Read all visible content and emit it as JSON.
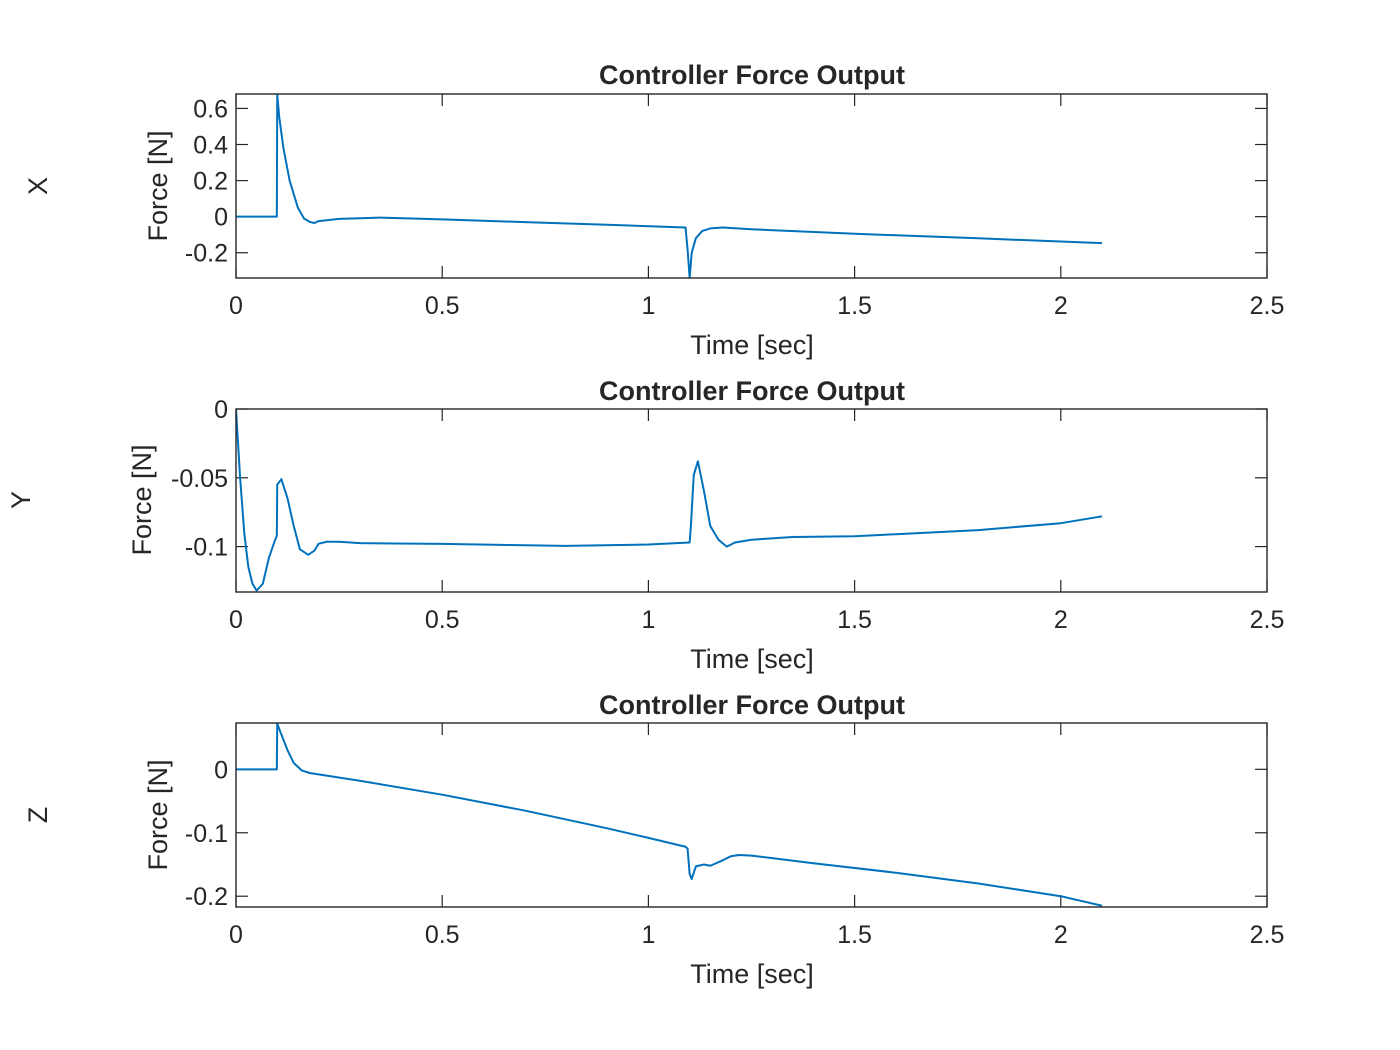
{
  "chart_data": [
    {
      "type": "line",
      "row_label": "X",
      "title": "Controller Force Output",
      "xlabel": "Time [sec]",
      "ylabel": "Force [N]",
      "xlim": [
        0,
        2.5
      ],
      "ylim": [
        -0.34,
        0.68
      ],
      "xticks": [
        0,
        0.5,
        1,
        1.5,
        2,
        2.5
      ],
      "xtick_labels": [
        "0",
        "0.5",
        "1",
        "1.5",
        "2",
        "2.5"
      ],
      "yticks": [
        -0.2,
        0,
        0.2,
        0.4,
        0.6
      ],
      "ytick_labels": [
        "-0.2",
        "0",
        "0.2",
        "0.4",
        "0.6"
      ],
      "grid": false,
      "color": "#0072BD",
      "series": [
        {
          "x": [
            0,
            0.099,
            0.1,
            0.105,
            0.115,
            0.13,
            0.15,
            0.165,
            0.18,
            0.19,
            0.2,
            0.22,
            0.25,
            0.35,
            0.5,
            0.7,
            0.9,
            1.09,
            1.095,
            1.1,
            1.105,
            1.115,
            1.13,
            1.15,
            1.18,
            1.25,
            1.5,
            1.8,
            2.1
          ],
          "y": [
            0,
            0,
            0.68,
            0.55,
            0.38,
            0.2,
            0.05,
            -0.01,
            -0.03,
            -0.035,
            -0.025,
            -0.02,
            -0.012,
            -0.005,
            -0.015,
            -0.03,
            -0.045,
            -0.06,
            -0.18,
            -0.34,
            -0.2,
            -0.12,
            -0.08,
            -0.065,
            -0.06,
            -0.07,
            -0.095,
            -0.12,
            -0.147
          ]
        }
      ]
    },
    {
      "type": "line",
      "row_label": "Y",
      "title": "Controller Force Output",
      "xlabel": "Time [sec]",
      "ylabel": "Force [N]",
      "xlim": [
        0,
        2.5
      ],
      "ylim": [
        -0.133,
        0
      ],
      "xticks": [
        0,
        0.5,
        1,
        1.5,
        2,
        2.5
      ],
      "xtick_labels": [
        "0",
        "0.5",
        "1",
        "1.5",
        "2",
        "2.5"
      ],
      "yticks": [
        -0.1,
        -0.05,
        0
      ],
      "ytick_labels": [
        "-0.1",
        "-0.05",
        "0"
      ],
      "grid": false,
      "color": "#0072BD",
      "series": [
        {
          "x": [
            0,
            0.01,
            0.02,
            0.03,
            0.04,
            0.05,
            0.065,
            0.08,
            0.095,
            0.099,
            0.1,
            0.11,
            0.125,
            0.14,
            0.155,
            0.175,
            0.19,
            0.2,
            0.22,
            0.25,
            0.3,
            0.5,
            0.8,
            1.0,
            1.1,
            1.103,
            1.11,
            1.12,
            1.135,
            1.15,
            1.17,
            1.19,
            1.21,
            1.25,
            1.35,
            1.5,
            1.6,
            1.8,
            2.0,
            2.1
          ],
          "y": [
            0,
            -0.05,
            -0.09,
            -0.115,
            -0.127,
            -0.132,
            -0.127,
            -0.108,
            -0.095,
            -0.092,
            -0.055,
            -0.051,
            -0.065,
            -0.085,
            -0.102,
            -0.106,
            -0.103,
            -0.098,
            -0.0965,
            -0.0965,
            -0.0975,
            -0.098,
            -0.0995,
            -0.0985,
            -0.097,
            -0.085,
            -0.048,
            -0.038,
            -0.06,
            -0.085,
            -0.095,
            -0.1,
            -0.097,
            -0.095,
            -0.093,
            -0.0925,
            -0.091,
            -0.088,
            -0.083,
            -0.078
          ]
        }
      ]
    },
    {
      "type": "line",
      "row_label": "Z",
      "title": "Controller Force Output",
      "xlabel": "Time [sec]",
      "ylabel": "Force [N]",
      "xlim": [
        0,
        2.5
      ],
      "ylim": [
        -0.217,
        0.073
      ],
      "xticks": [
        0,
        0.5,
        1,
        1.5,
        2,
        2.5
      ],
      "xtick_labels": [
        "0",
        "0.5",
        "1",
        "1.5",
        "2",
        "2.5"
      ],
      "yticks": [
        -0.2,
        -0.1,
        0
      ],
      "ytick_labels": [
        "-0.2",
        "-0.1",
        "0"
      ],
      "grid": false,
      "color": "#0072BD",
      "series": [
        {
          "x": [
            0,
            0.099,
            0.1,
            0.11,
            0.125,
            0.14,
            0.16,
            0.18,
            0.2,
            0.3,
            0.5,
            0.7,
            0.9,
            1.0,
            1.09,
            1.095,
            1.1,
            1.105,
            1.115,
            1.135,
            1.15,
            1.175,
            1.2,
            1.22,
            1.25,
            1.4,
            1.6,
            1.8,
            2.0,
            2.1
          ],
          "y": [
            0,
            0,
            0.072,
            0.055,
            0.03,
            0.01,
            -0.002,
            -0.006,
            -0.008,
            -0.018,
            -0.04,
            -0.065,
            -0.093,
            -0.108,
            -0.122,
            -0.125,
            -0.165,
            -0.173,
            -0.153,
            -0.15,
            -0.152,
            -0.145,
            -0.137,
            -0.135,
            -0.136,
            -0.148,
            -0.163,
            -0.18,
            -0.2,
            -0.215
          ]
        }
      ]
    }
  ]
}
